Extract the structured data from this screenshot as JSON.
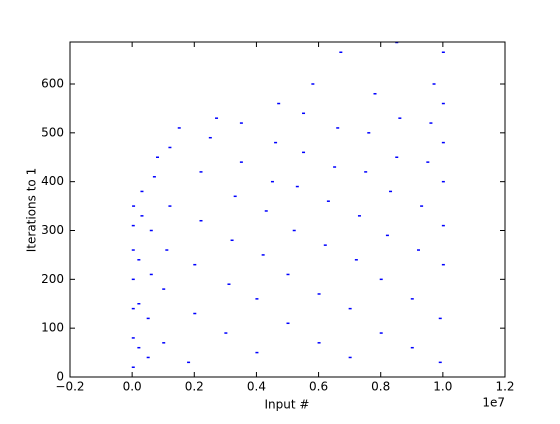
{
  "chart_data": {
    "type": "scatter",
    "x_label": "Input #",
    "y_label": "Iterations to 1",
    "x_offset_label": "1e7",
    "color": "#0000ff",
    "x": [
      0.002,
      0.002,
      0.002,
      0.002,
      0.002,
      0.002,
      0.003,
      0.02,
      0.02,
      0.02,
      0.03,
      0.03,
      0.05,
      0.05,
      0.06,
      0.06,
      0.07,
      0.08,
      0.1,
      0.1,
      0.11,
      0.12,
      0.12,
      0.15,
      0.18,
      0.2,
      0.2,
      0.22,
      0.22,
      0.25,
      0.27,
      0.3,
      0.31,
      0.32,
      0.33,
      0.35,
      0.35,
      0.4,
      0.4,
      0.42,
      0.43,
      0.45,
      0.46,
      0.47,
      0.5,
      0.5,
      0.52,
      0.53,
      0.55,
      0.55,
      0.58,
      0.6,
      0.6,
      0.62,
      0.63,
      0.65,
      0.66,
      0.67,
      0.7,
      0.7,
      0.72,
      0.73,
      0.75,
      0.76,
      0.78,
      0.8,
      0.8,
      0.82,
      0.83,
      0.85,
      0.86,
      0.85,
      0.9,
      0.9,
      0.92,
      0.93,
      0.95,
      0.96,
      0.97,
      0.99,
      0.99,
      1.0,
      1.0,
      1.0,
      1.0,
      1.0,
      1.0
    ],
    "values": [
      20,
      80,
      140,
      200,
      260,
      310,
      350,
      60,
      150,
      240,
      330,
      380,
      40,
      120,
      210,
      300,
      410,
      450,
      70,
      180,
      260,
      350,
      470,
      510,
      30,
      130,
      230,
      320,
      420,
      490,
      530,
      90,
      190,
      280,
      370,
      440,
      520,
      50,
      160,
      250,
      340,
      400,
      480,
      560,
      110,
      210,
      300,
      390,
      460,
      540,
      600,
      70,
      170,
      270,
      360,
      430,
      510,
      665,
      40,
      140,
      240,
      330,
      420,
      500,
      580,
      90,
      200,
      290,
      380,
      450,
      530,
      685,
      60,
      160,
      260,
      350,
      440,
      520,
      600,
      30,
      120,
      230,
      310,
      400,
      480,
      560,
      665
    ],
    "xlim": [
      -0.2,
      1.2
    ],
    "xticks": [
      {
        "value": -0.2,
        "label": "−0.2"
      },
      {
        "value": 0,
        "label": "0.0"
      },
      0.2,
      0.4,
      0.6,
      0.8,
      {
        "value": 1,
        "label": "1.0"
      },
      1.2
    ],
    "ylim": [
      0,
      686
    ],
    "yticks": [
      0,
      100,
      200,
      300,
      400,
      500,
      600
    ]
  }
}
